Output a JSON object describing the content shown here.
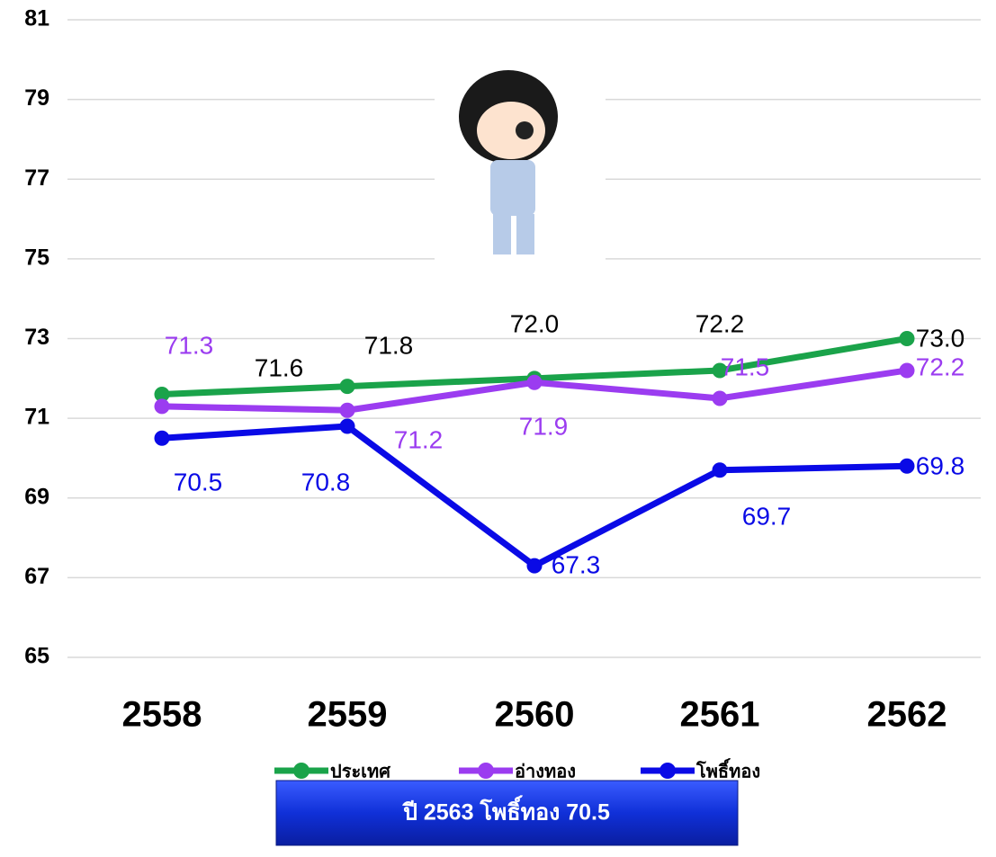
{
  "chart_data": {
    "type": "line",
    "categories": [
      "2558",
      "2559",
      "2560",
      "2561",
      "2562"
    ],
    "series": [
      {
        "name": "ประเทศ",
        "color": "#1aa34a",
        "values": [
          71.6,
          71.8,
          72.0,
          72.2,
          73.0
        ],
        "value_labels": [
          "71.6",
          "71.8",
          "72.0",
          "72.2",
          "73.0"
        ]
      },
      {
        "name": "อ่างทอง",
        "color": "#9b3cf0",
        "values": [
          71.3,
          71.2,
          71.9,
          71.5,
          72.2
        ],
        "value_labels": [
          "71.3",
          "71.2",
          "71.9",
          "71.5",
          "72.2"
        ]
      },
      {
        "name": "โพธิ์ทอง",
        "color": "#0a0ae6",
        "values": [
          70.5,
          70.8,
          67.3,
          69.7,
          69.8
        ],
        "value_labels": [
          "70.5",
          "70.8",
          "67.3",
          "69.7",
          "69.8"
        ]
      }
    ],
    "ylim": [
      65,
      81
    ],
    "yticks": [
      65,
      67,
      69,
      71,
      73,
      75,
      77,
      79,
      81
    ],
    "grid": true,
    "legend": "bottom",
    "annotation": "ปี 2563 โพธิ์ทอง 70.5"
  }
}
